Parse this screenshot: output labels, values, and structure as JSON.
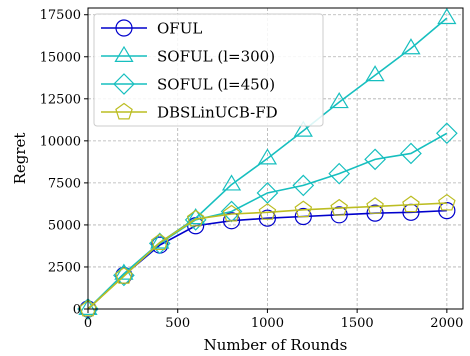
{
  "chart_data": {
    "type": "line",
    "xlabel": "Number of Rounds",
    "ylabel": "Regret",
    "xlim": [
      0,
      2090
    ],
    "ylim": [
      0,
      17900
    ],
    "x_ticks": [
      "0",
      "500",
      "1000",
      "1500",
      "2000"
    ],
    "y_ticks": [
      "0",
      "2500",
      "5000",
      "7500",
      "10000",
      "12500",
      "15000",
      "17500"
    ],
    "grid": true,
    "legend_position": "top-left",
    "x": [
      0,
      200,
      400,
      600,
      800,
      1000,
      1200,
      1400,
      1600,
      1800,
      2000
    ],
    "series": [
      {
        "name": "OFUL",
        "color": "#0000cc",
        "marker": "circle",
        "values": [
          0,
          2000,
          3800,
          4950,
          5250,
          5400,
          5500,
          5600,
          5700,
          5750,
          5850
        ]
      },
      {
        "name": "SOFUL (l=300)",
        "color": "#17bfbf",
        "marker": "triangle",
        "values": [
          0,
          2100,
          3950,
          5400,
          7400,
          8950,
          10600,
          12300,
          13900,
          15500,
          17300
        ]
      },
      {
        "name": "SOFUL (l=450)",
        "color": "#17bfbf",
        "marker": "diamond",
        "values": [
          0,
          2000,
          3900,
          5300,
          5800,
          6900,
          7350,
          8050,
          8900,
          9250,
          10450
        ]
      },
      {
        "name": "DBSLinUCB-FD",
        "color": "#bcbd22",
        "marker": "pentagon",
        "values": [
          0,
          1950,
          3950,
          5350,
          5650,
          5750,
          5900,
          6000,
          6100,
          6200,
          6300
        ]
      }
    ]
  }
}
